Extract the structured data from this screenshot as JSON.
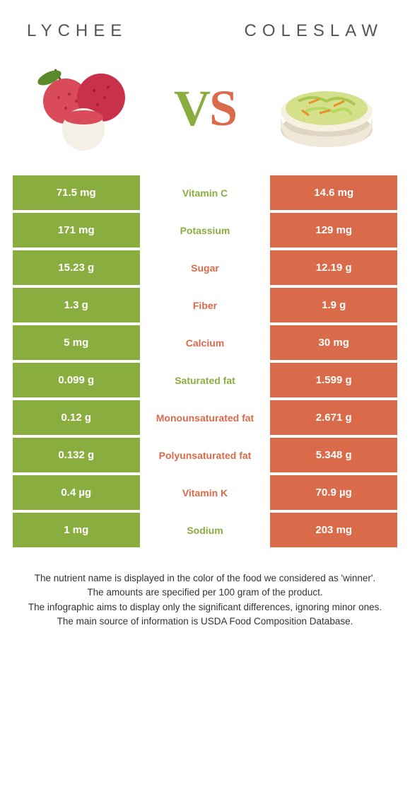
{
  "colors": {
    "left": "#8aad3f",
    "right": "#d96a4a",
    "bg": "#ffffff"
  },
  "foods": {
    "left": "LYCHEE",
    "right": "COLESLAW"
  },
  "vs": {
    "v": "V",
    "s": "S"
  },
  "rows": [
    {
      "left": "71.5 mg",
      "label": "Vitamin C",
      "right": "14.6 mg",
      "winner": "left"
    },
    {
      "left": "171 mg",
      "label": "Potassium",
      "right": "129 mg",
      "winner": "left"
    },
    {
      "left": "15.23 g",
      "label": "Sugar",
      "right": "12.19 g",
      "winner": "right"
    },
    {
      "left": "1.3 g",
      "label": "Fiber",
      "right": "1.9 g",
      "winner": "right"
    },
    {
      "left": "5 mg",
      "label": "Calcium",
      "right": "30 mg",
      "winner": "right"
    },
    {
      "left": "0.099 g",
      "label": "Saturated fat",
      "right": "1.599 g",
      "winner": "left"
    },
    {
      "left": "0.12 g",
      "label": "Monounsaturated fat",
      "right": "2.671 g",
      "winner": "right"
    },
    {
      "left": "0.132 g",
      "label": "Polyunsaturated fat",
      "right": "5.348 g",
      "winner": "right"
    },
    {
      "left": "0.4 µg",
      "label": "Vitamin K",
      "right": "70.9 µg",
      "winner": "right"
    },
    {
      "left": "1 mg",
      "label": "Sodium",
      "right": "203 mg",
      "winner": "left"
    }
  ],
  "footer": {
    "l1": "The nutrient name is displayed in the color of the food we considered as 'winner'.",
    "l2": "The amounts are specified per 100 gram of the product.",
    "l3": "The infographic aims to display only the significant differences, ignoring minor ones.",
    "l4": "The main source of information is USDA Food Composition Database."
  }
}
